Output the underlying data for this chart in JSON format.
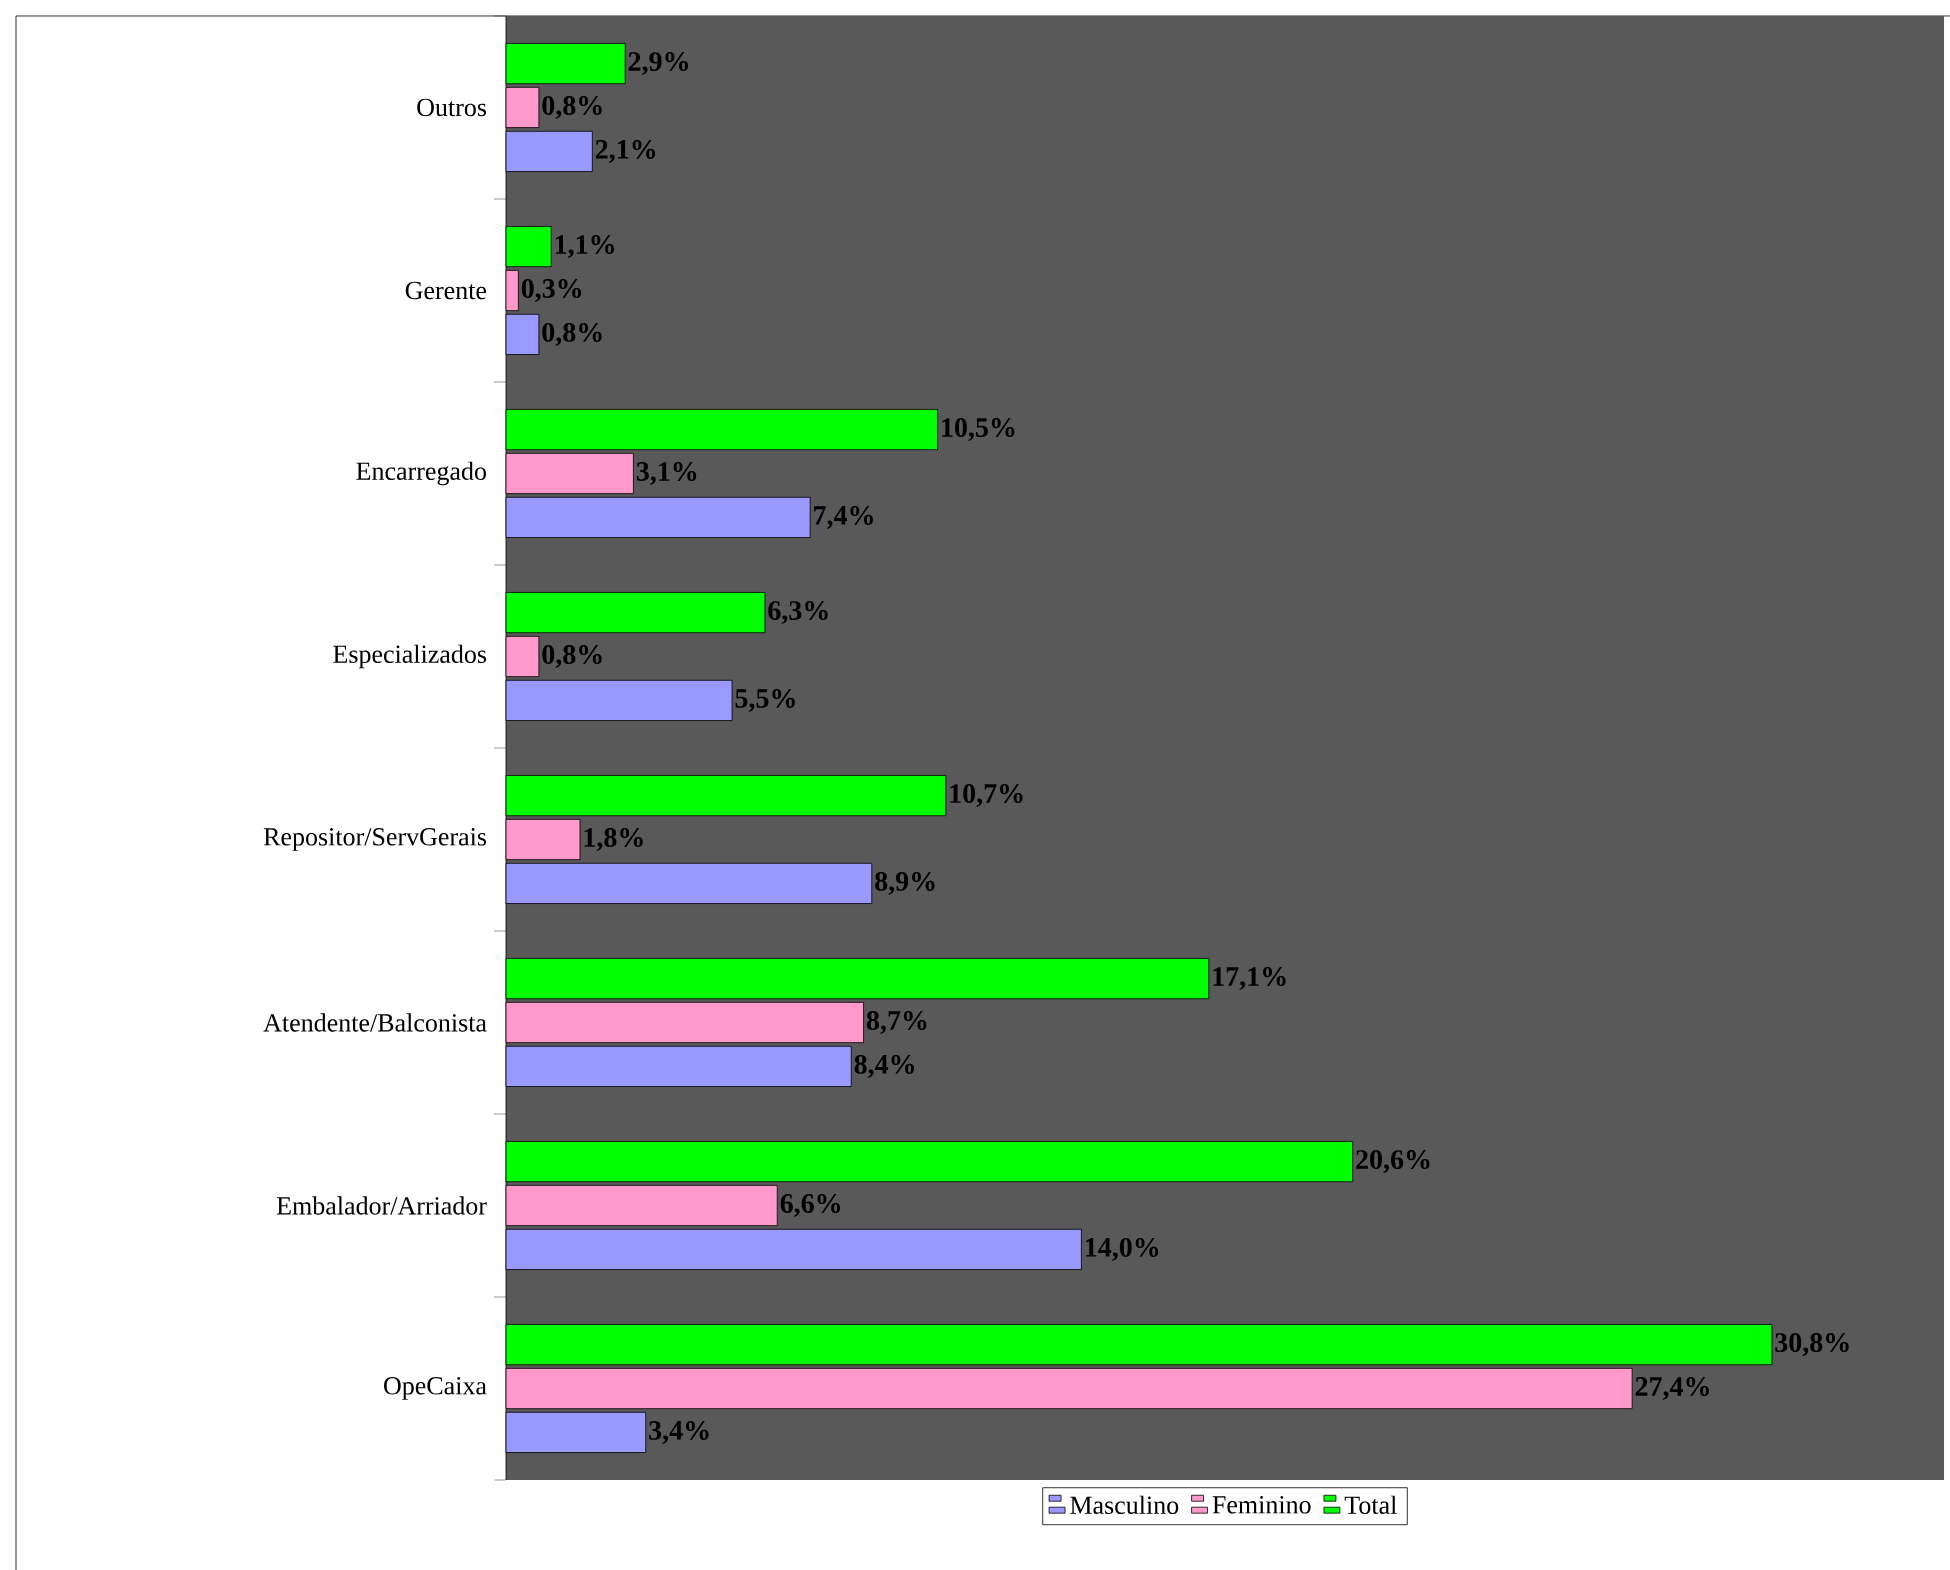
{
  "chart_data": {
    "type": "bar",
    "orientation": "horizontal",
    "legend": "bottom",
    "categories": [
      "Outros",
      "Gerente",
      "Encarregado",
      "Especializados",
      "Repositor/ServGerais",
      "Atendente/Balconista",
      "Embalador/Arriador",
      "OpeCaixa"
    ],
    "series": [
      {
        "name": "Masculino",
        "color": "#9999ff",
        "values": [
          2.1,
          0.8,
          7.4,
          5.5,
          8.9,
          8.4,
          14.0,
          3.4
        ],
        "value_labels": [
          "2,1%",
          "0,8%",
          "7,4%",
          "5,5%",
          "8,9%",
          "8,4%",
          "14,0%",
          "3,4%"
        ]
      },
      {
        "name": "Feminino",
        "color": "#ff99cc",
        "values": [
          0.8,
          0.3,
          3.1,
          0.8,
          1.8,
          8.7,
          6.6,
          27.4
        ],
        "value_labels": [
          "0,8%",
          "0,3%",
          "3,1%",
          "0,8%",
          "1,8%",
          "8,7%",
          "6,6%",
          "27,4%"
        ]
      },
      {
        "name": "Total",
        "color": "#00ff00",
        "values": [
          2.9,
          1.1,
          10.5,
          6.3,
          10.7,
          17.1,
          20.6,
          30.8
        ],
        "value_labels": [
          "2,9%",
          "1,1%",
          "10,5%",
          "6,3%",
          "10,7%",
          "17,1%",
          "20,6%",
          "30,8%"
        ]
      }
    ]
  }
}
